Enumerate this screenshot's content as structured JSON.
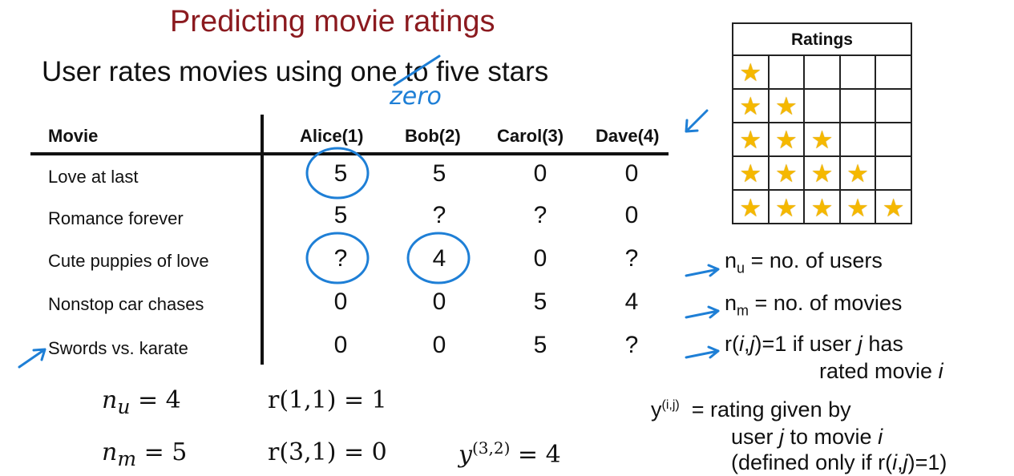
{
  "title": "Predicting movie ratings",
  "subtitle": {
    "before": "User rates movies using ",
    "struck": "one",
    "after": " to five stars",
    "handwritten": "zero"
  },
  "table": {
    "movie_header": "Movie",
    "users": [
      "Alice(1)",
      "Bob(2)",
      "Carol(3)",
      "Dave(4)"
    ],
    "rows": [
      {
        "movie": "Love at last",
        "ratings": [
          "5",
          "5",
          "0",
          "0"
        ]
      },
      {
        "movie": "Romance forever",
        "ratings": [
          "5",
          "?",
          "?",
          "0"
        ]
      },
      {
        "movie": "Cute puppies of love",
        "ratings": [
          "?",
          "4",
          "0",
          "?"
        ]
      },
      {
        "movie": "Nonstop car chases",
        "ratings": [
          "0",
          "0",
          "5",
          "4"
        ]
      },
      {
        "movie": "Swords vs. karate",
        "ratings": [
          "0",
          "0",
          "5",
          "?"
        ]
      }
    ]
  },
  "equations": {
    "nu_lhs": "n",
    "nu_sub": "u",
    "nu_rhs": " = 4",
    "nm_lhs": "n",
    "nm_sub": "m",
    "nm_rhs": " = 5",
    "r11": "r(1,1) = 1",
    "r31": "r(3,1) = 0",
    "y_base": "y",
    "y_sup": "(3,2)",
    "y_rhs": " = 4"
  },
  "ratings_panel": {
    "header": "Ratings",
    "star_counts": [
      1,
      2,
      3,
      4,
      5
    ],
    "star_color": "#f5b800"
  },
  "notation": {
    "nu_sym": "n",
    "nu_sub": "u",
    "nu_text": "= no. of users",
    "nm_sym": "n",
    "nm_sub": "m",
    "nm_text": "= no. of movies",
    "r_a": "r(",
    "r_i": "i",
    "r_comma": ",",
    "r_j": "j",
    "r_b": ")=1 if user ",
    "r_j2": "j",
    "r_c": " has",
    "r_line2_a": "rated movie ",
    "r_line2_i": "i",
    "y_sym": "y",
    "y_sup": "(i,j)",
    "y_line1": "= rating given by",
    "y_line2_a": "user ",
    "y_line2_j": "j",
    "y_line2_b": " to movie ",
    "y_line2_i": "i",
    "y_line3_a": "(defined only if r(",
    "y_line3_i": "i",
    "y_line3_c": ",",
    "y_line3_j": "j",
    "y_line3_b": ")=1)"
  },
  "annotation_color": "#1e7fd6",
  "title_color": "#8b1a1f"
}
